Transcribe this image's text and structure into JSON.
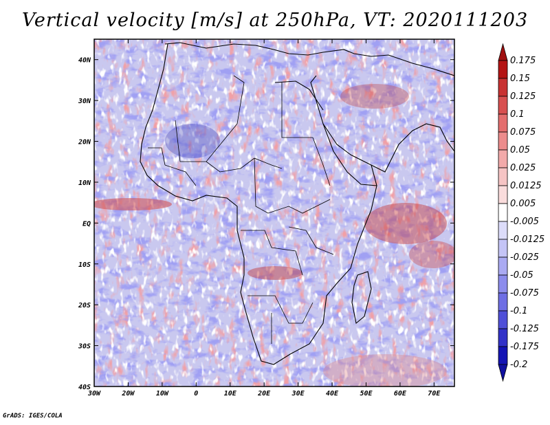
{
  "title": "Vertical velocity [m/s] at 250hPa, VT: 2020111203",
  "credit": "GrADS: IGES/COLA",
  "map": {
    "lat_labels": [
      "40N",
      "30N",
      "20N",
      "10N",
      "EQ",
      "10S",
      "20S",
      "30S",
      "40S"
    ],
    "lon_labels": [
      "30W",
      "20W",
      "10W",
      "0",
      "10E",
      "20E",
      "30E",
      "40E",
      "50E",
      "60E",
      "70E"
    ],
    "lat_range": [
      -40,
      45
    ],
    "lon_range": [
      -30,
      76
    ]
  },
  "colorbar": {
    "labels": [
      "0.175",
      "0.15",
      "0.125",
      "0.1",
      "0.075",
      "0.05",
      "0.025",
      "0.0125",
      "0.005",
      "-0.005",
      "-0.0125",
      "-0.025",
      "-0.05",
      "-0.075",
      "-0.1",
      "-0.125",
      "-0.175",
      "-0.2"
    ],
    "colors": [
      "#b41414",
      "#c83232",
      "#d85050",
      "#e46e6e",
      "#ec8c8c",
      "#f2aaaa",
      "#f6c4c4",
      "#fadcdc",
      "#ffffff",
      "#dcdcfa",
      "#c4c4f6",
      "#aaaaf2",
      "#8c8cec",
      "#6e6ee4",
      "#5050d8",
      "#3232c8",
      "#1414b4"
    ],
    "end_colors": {
      "top": "#a01010",
      "bottom": "#1010a0"
    }
  }
}
